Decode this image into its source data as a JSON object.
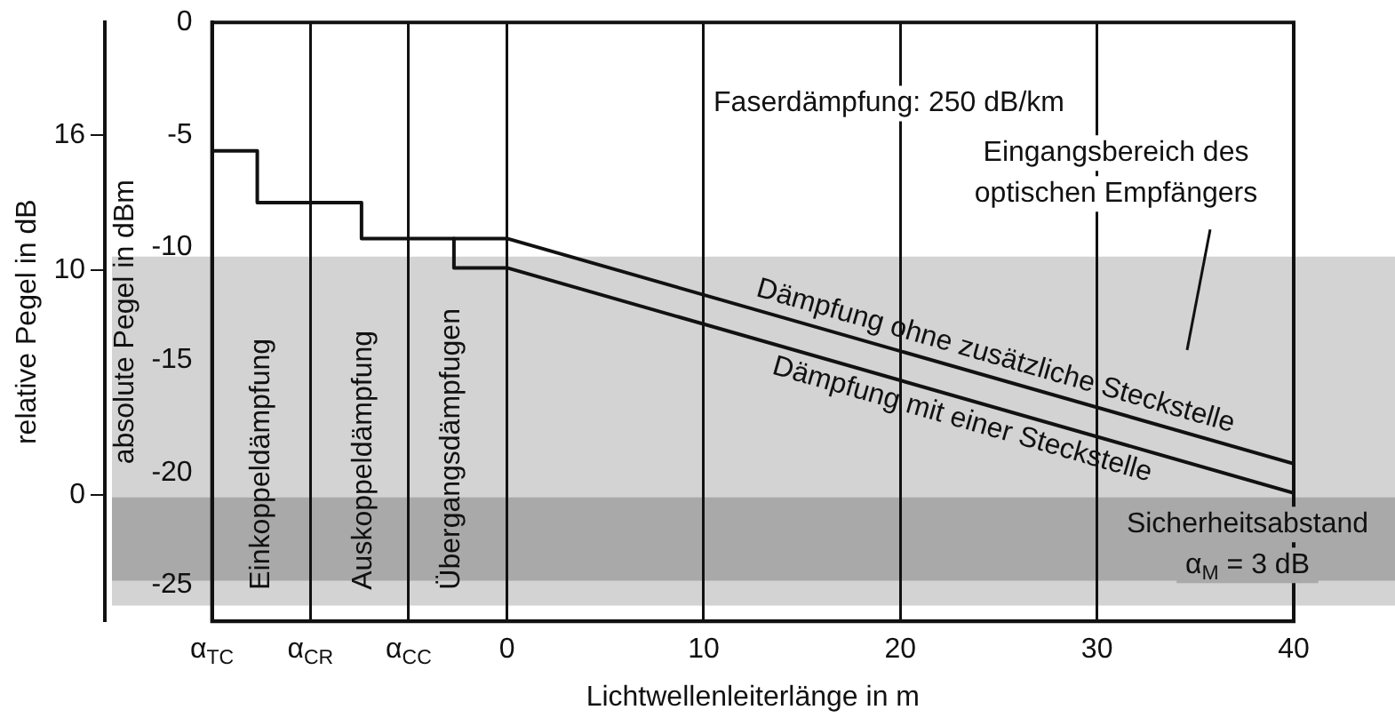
{
  "chart_data": {
    "type": "line",
    "xlabel": "Lichtwellenleiterlänge in m",
    "ylabel": "absolute Pegel in dBm",
    "y2label": "relative Pegel in dB",
    "xlim": [
      -15,
      40
    ],
    "xticks": [
      {
        "value": -15,
        "label": "α$_{TC}$"
      },
      {
        "value": -10,
        "label": "α$_{CR}$"
      },
      {
        "value": -5,
        "label": "α$_{CC}$"
      },
      0,
      10,
      20,
      30,
      40
    ],
    "ylim": [
      -26.6,
      0
    ],
    "yticks": [
      -25,
      -20,
      -15,
      -10,
      -5,
      0
    ],
    "y2lim": [
      -5.6,
      21
    ],
    "y2ticks": [
      0,
      10,
      16
    ],
    "series": [
      {
        "name": "Dämpfung ohne zusätzliche Steckstelle",
        "color": "#111111",
        "x": [
          -15,
          -12.7,
          -12.7,
          -7.4,
          -7.4,
          0,
          40
        ],
        "values": [
          -5.7,
          -5.7,
          -8,
          -8,
          -9.6,
          -9.6,
          -19.6
        ]
      },
      {
        "name": "Dämpfung mit einer Steckstelle",
        "color": "#111111",
        "x": [
          -2.7,
          -2.7,
          0,
          40
        ],
        "values": [
          -9.6,
          -10.9,
          -10.9,
          -20.9
        ]
      }
    ],
    "bands": [
      {
        "axis": "y",
        "from": -25.9,
        "to": -10.4,
        "label": "Eingangsbereich des\noptischen Empfängers",
        "color": "#d3d3d3"
      },
      {
        "axis": "y",
        "from": -24.8,
        "to": -21.1,
        "label": "Sicherheitsabstand\nα$_{M}$ = 3 dB",
        "color": "#a9a9a9"
      }
    ],
    "annotations": [
      "Faserdämpfung: 250 dB/km",
      "Einkoppeldämpfung",
      "Auskoppeldämpfung",
      "Übergangsdämpfugen"
    ],
    "grid": "x",
    "legend": false,
    "line_style": "solid",
    "marker": "none"
  }
}
